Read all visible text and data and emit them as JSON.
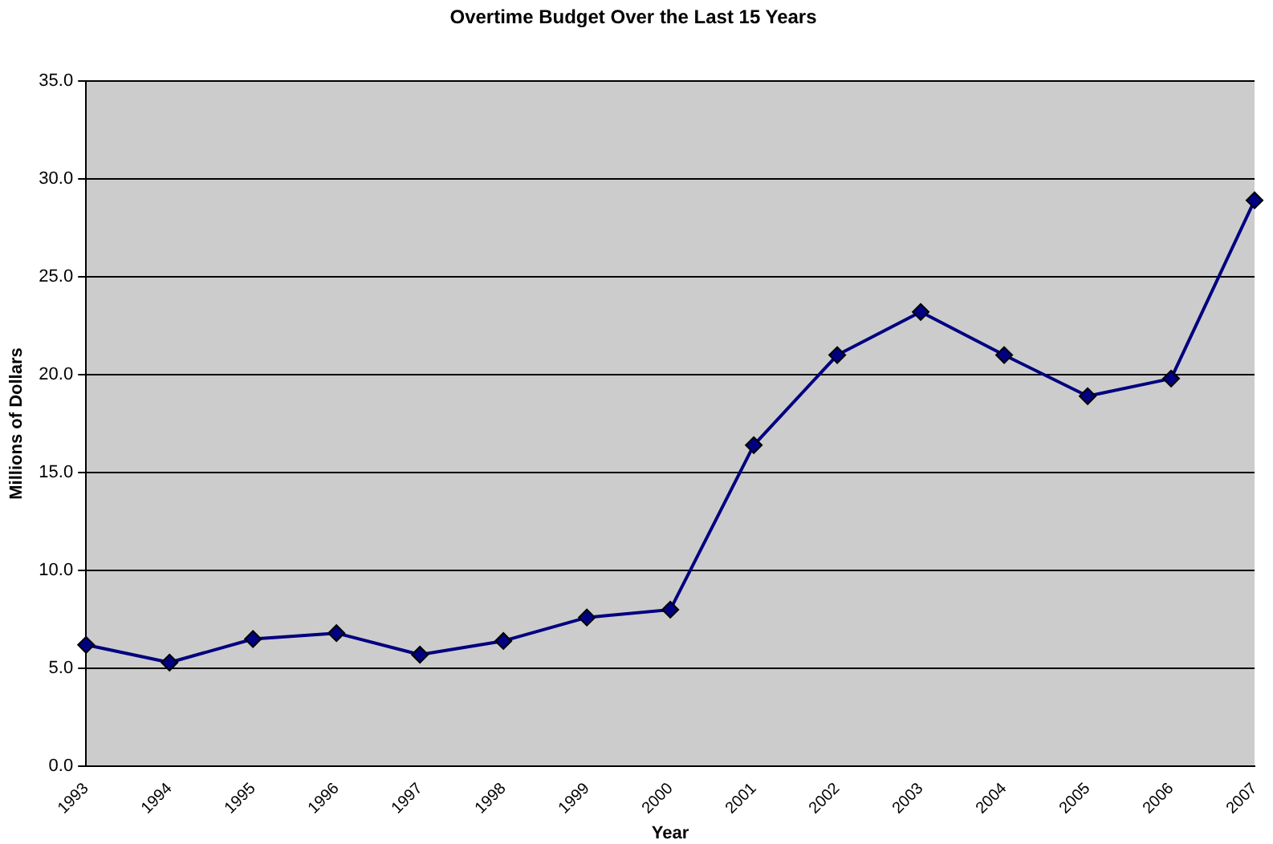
{
  "chart_data": {
    "type": "line",
    "title": "Overtime Budget Over the Last 15 Years",
    "xlabel": "Year",
    "ylabel": "Millions of Dollars",
    "categories": [
      "1993",
      "1994",
      "1995",
      "1996",
      "1997",
      "1998",
      "1999",
      "2000",
      "2001",
      "2002",
      "2003",
      "2004",
      "2005",
      "2006",
      "2007"
    ],
    "series": [
      {
        "color": "#000080",
        "values": [
          6.2,
          5.3,
          6.5,
          6.8,
          5.7,
          6.4,
          7.6,
          8.0,
          16.4,
          21.0,
          23.2,
          21.0,
          18.9,
          19.8,
          28.9
        ]
      }
    ],
    "ylim": [
      0,
      35
    ],
    "yticks": [
      {
        "value": 0,
        "label": "0.0"
      },
      {
        "value": 5,
        "label": "5.0"
      },
      {
        "value": 10,
        "label": "10.0"
      },
      {
        "value": 15,
        "label": "15.0"
      },
      {
        "value": 20,
        "label": "20.0"
      },
      {
        "value": 25,
        "label": "25.0"
      },
      {
        "value": 30,
        "label": "30.0"
      },
      {
        "value": 35,
        "label": "35.0"
      }
    ],
    "grid": "y",
    "legend": false,
    "marker": "diamond",
    "line_style": "solid"
  }
}
